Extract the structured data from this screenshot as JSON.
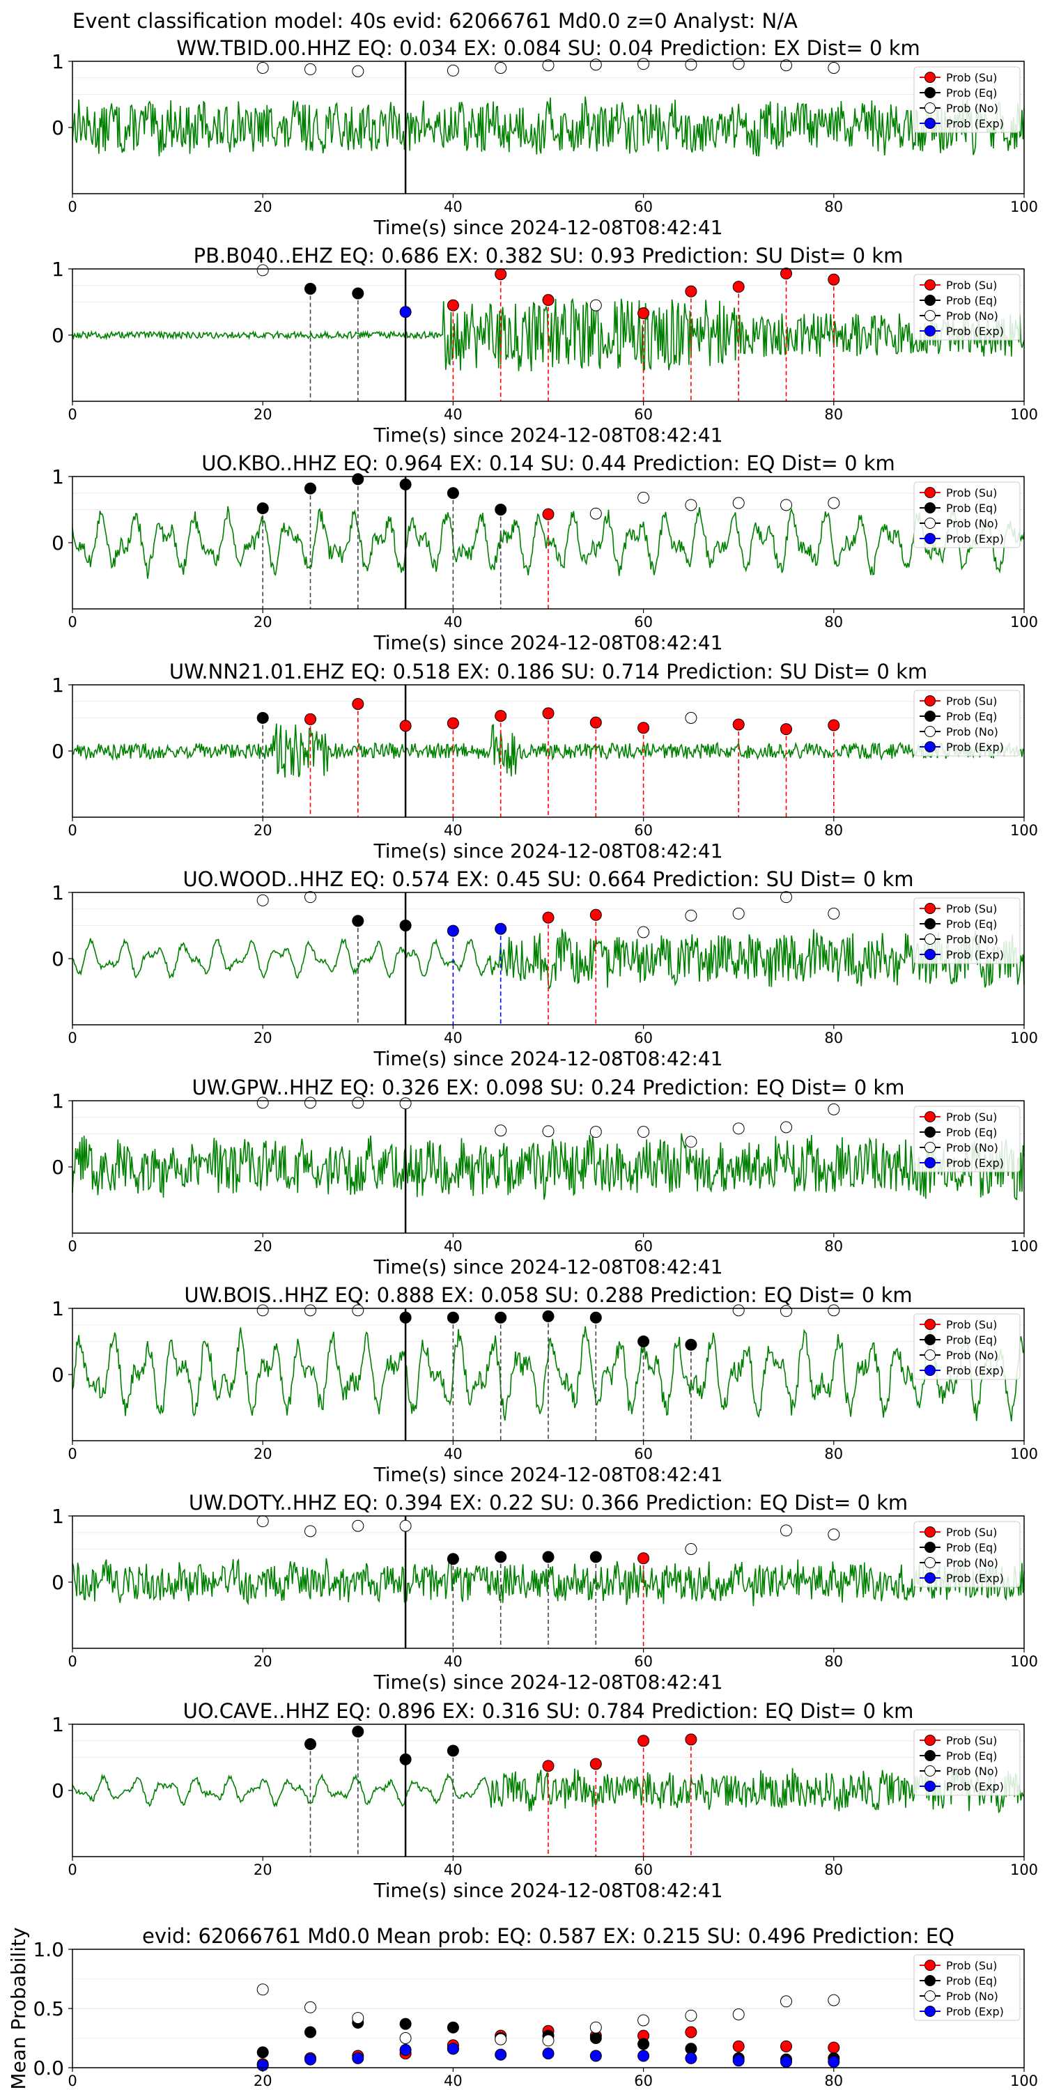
{
  "figure": {
    "title": "Event classification model: 40s evid: 62066761 Md0.0 z=0 Analyst: N/A"
  },
  "colors": {
    "waveform": "#008000",
    "su": "#ff0000",
    "eq": "#000000",
    "no": "#ffffff",
    "exp": "#0000ff",
    "su_line": "#ff0000",
    "eq_line": "#444444",
    "exp_line": "#0000ff",
    "origin_line": "#000000"
  },
  "legend_labels": [
    "Prob (Su)",
    "Prob (Eq)",
    "Prob (No)",
    "Prob (Exp)"
  ],
  "chart_data": [
    {
      "type": "scatter",
      "title": "WW.TBID.00.HHZ   EQ: 0.034  EX: 0.084  SU: 0.04   Prediction: EX    Dist= 0 km",
      "xlabel": "Time(s) since 2024-12-08T08:42:41",
      "xlim": [
        0,
        100
      ],
      "ylim": [
        -1,
        1
      ],
      "xticks": [
        "0",
        "20",
        "40",
        "60",
        "80",
        "100"
      ],
      "yticks": [
        "0",
        "1"
      ],
      "origin_time": 35,
      "waveform": {
        "style": "noise",
        "amp": 0.45
      },
      "points": [
        {
          "x": 20,
          "y": 0.9,
          "class": "No"
        },
        {
          "x": 25,
          "y": 0.88,
          "class": "No"
        },
        {
          "x": 30,
          "y": 0.85,
          "class": "No"
        },
        {
          "x": 40,
          "y": 0.86,
          "class": "No"
        },
        {
          "x": 45,
          "y": 0.9,
          "class": "No"
        },
        {
          "x": 50,
          "y": 0.94,
          "class": "No"
        },
        {
          "x": 55,
          "y": 0.95,
          "class": "No"
        },
        {
          "x": 60,
          "y": 0.96,
          "class": "No"
        },
        {
          "x": 65,
          "y": 0.95,
          "class": "No"
        },
        {
          "x": 70,
          "y": 0.96,
          "class": "No"
        },
        {
          "x": 75,
          "y": 0.94,
          "class": "No"
        },
        {
          "x": 80,
          "y": 0.9,
          "class": "No"
        }
      ],
      "legend": "top-right"
    },
    {
      "type": "scatter",
      "title": "PB.B040..EHZ   EQ: 0.686  EX: 0.382  SU: 0.93   Prediction: SU    Dist= 0 km",
      "xlabel": "Time(s) since 2024-12-08T08:42:41",
      "xlim": [
        0,
        100
      ],
      "ylim": [
        -1,
        1
      ],
      "xticks": [
        "0",
        "20",
        "40",
        "60",
        "80",
        "100"
      ],
      "yticks": [
        "0",
        "1"
      ],
      "origin_time": 35,
      "waveform": {
        "style": "burst",
        "amp": 0.55
      },
      "points": [
        {
          "x": 20,
          "y": 0.98,
          "class": "No"
        },
        {
          "x": 25,
          "y": 0.7,
          "class": "Eq"
        },
        {
          "x": 30,
          "y": 0.63,
          "class": "Eq"
        },
        {
          "x": 35,
          "y": 0.35,
          "class": "Exp"
        },
        {
          "x": 40,
          "y": 0.45,
          "class": "Su"
        },
        {
          "x": 45,
          "y": 0.92,
          "class": "Su"
        },
        {
          "x": 50,
          "y": 0.53,
          "class": "Su"
        },
        {
          "x": 55,
          "y": 0.45,
          "class": "No"
        },
        {
          "x": 60,
          "y": 0.33,
          "class": "Su"
        },
        {
          "x": 65,
          "y": 0.66,
          "class": "Su"
        },
        {
          "x": 70,
          "y": 0.73,
          "class": "Su"
        },
        {
          "x": 75,
          "y": 0.93,
          "class": "Su"
        },
        {
          "x": 80,
          "y": 0.84,
          "class": "Su"
        }
      ],
      "legend": "top-right"
    },
    {
      "type": "scatter",
      "title": "UO.KBO..HHZ   EQ: 0.964  EX: 0.14  SU: 0.44   Prediction: EQ    Dist= 0 km",
      "xlabel": "Time(s) since 2024-12-08T08:42:41",
      "xlim": [
        0,
        100
      ],
      "ylim": [
        -1,
        1
      ],
      "xticks": [
        "0",
        "20",
        "40",
        "60",
        "80",
        "100"
      ],
      "yticks": [
        "0",
        "1"
      ],
      "origin_time": 35,
      "waveform": {
        "style": "wavy",
        "amp": 0.45
      },
      "points": [
        {
          "x": 20,
          "y": 0.52,
          "class": "Eq"
        },
        {
          "x": 25,
          "y": 0.82,
          "class": "Eq"
        },
        {
          "x": 30,
          "y": 0.96,
          "class": "Eq"
        },
        {
          "x": 35,
          "y": 0.88,
          "class": "Eq"
        },
        {
          "x": 40,
          "y": 0.75,
          "class": "Eq"
        },
        {
          "x": 45,
          "y": 0.5,
          "class": "Eq"
        },
        {
          "x": 50,
          "y": 0.43,
          "class": "Su"
        },
        {
          "x": 55,
          "y": 0.44,
          "class": "No"
        },
        {
          "x": 60,
          "y": 0.68,
          "class": "No"
        },
        {
          "x": 65,
          "y": 0.57,
          "class": "No"
        },
        {
          "x": 70,
          "y": 0.6,
          "class": "No"
        },
        {
          "x": 75,
          "y": 0.57,
          "class": "No"
        },
        {
          "x": 80,
          "y": 0.6,
          "class": "No"
        }
      ],
      "legend": "top-right"
    },
    {
      "type": "scatter",
      "title": "UW.NN21.01.EHZ   EQ: 0.518  EX: 0.186  SU: 0.714   Prediction: SU    Dist= 0 km",
      "xlabel": "Time(s) since 2024-12-08T08:42:41",
      "xlim": [
        0,
        100
      ],
      "ylim": [
        -1,
        1
      ],
      "xticks": [
        "0",
        "20",
        "40",
        "60",
        "80",
        "100"
      ],
      "yticks": [
        "0",
        "1"
      ],
      "origin_time": 35,
      "waveform": {
        "style": "quiet",
        "amp": 0.12
      },
      "points": [
        {
          "x": 20,
          "y": 0.5,
          "class": "Eq"
        },
        {
          "x": 25,
          "y": 0.48,
          "class": "Su"
        },
        {
          "x": 30,
          "y": 0.71,
          "class": "Su"
        },
        {
          "x": 35,
          "y": 0.38,
          "class": "Su"
        },
        {
          "x": 40,
          "y": 0.42,
          "class": "Su"
        },
        {
          "x": 45,
          "y": 0.53,
          "class": "Su"
        },
        {
          "x": 50,
          "y": 0.57,
          "class": "Su"
        },
        {
          "x": 55,
          "y": 0.43,
          "class": "Su"
        },
        {
          "x": 60,
          "y": 0.35,
          "class": "Su"
        },
        {
          "x": 65,
          "y": 0.5,
          "class": "No"
        },
        {
          "x": 70,
          "y": 0.4,
          "class": "Su"
        },
        {
          "x": 75,
          "y": 0.33,
          "class": "Su"
        },
        {
          "x": 80,
          "y": 0.39,
          "class": "Su"
        }
      ],
      "legend": "top-right"
    },
    {
      "type": "scatter",
      "title": "UO.WOOD..HHZ   EQ: 0.574  EX: 0.45  SU: 0.664   Prediction: SU    Dist= 0 km",
      "xlabel": "Time(s) since 2024-12-08T08:42:41",
      "xlim": [
        0,
        100
      ],
      "ylim": [
        -1,
        1
      ],
      "xticks": [
        "0",
        "20",
        "40",
        "60",
        "80",
        "100"
      ],
      "yticks": [
        "0",
        "1"
      ],
      "origin_time": 35,
      "waveform": {
        "style": "wavy-burst",
        "amp": 0.4
      },
      "points": [
        {
          "x": 20,
          "y": 0.88,
          "class": "No"
        },
        {
          "x": 25,
          "y": 0.93,
          "class": "No"
        },
        {
          "x": 30,
          "y": 0.57,
          "class": "Eq"
        },
        {
          "x": 35,
          "y": 0.5,
          "class": "Eq"
        },
        {
          "x": 40,
          "y": 0.42,
          "class": "Exp"
        },
        {
          "x": 45,
          "y": 0.45,
          "class": "Exp"
        },
        {
          "x": 50,
          "y": 0.62,
          "class": "Su"
        },
        {
          "x": 55,
          "y": 0.66,
          "class": "Su"
        },
        {
          "x": 60,
          "y": 0.4,
          "class": "No"
        },
        {
          "x": 65,
          "y": 0.65,
          "class": "No"
        },
        {
          "x": 70,
          "y": 0.68,
          "class": "No"
        },
        {
          "x": 75,
          "y": 0.93,
          "class": "No"
        },
        {
          "x": 80,
          "y": 0.68,
          "class": "No"
        }
      ],
      "legend": "top-right"
    },
    {
      "type": "scatter",
      "title": "UW.GPW..HHZ   EQ: 0.326  EX: 0.098  SU: 0.24   Prediction: EQ    Dist= 0 km",
      "xlabel": "Time(s) since 2024-12-08T08:42:41",
      "xlim": [
        0,
        100
      ],
      "ylim": [
        -1,
        1
      ],
      "xticks": [
        "0",
        "20",
        "40",
        "60",
        "80",
        "100"
      ],
      "yticks": [
        "0",
        "1"
      ],
      "origin_time": 35,
      "waveform": {
        "style": "noise",
        "amp": 0.5
      },
      "points": [
        {
          "x": 20,
          "y": 0.97,
          "class": "No"
        },
        {
          "x": 25,
          "y": 0.97,
          "class": "No"
        },
        {
          "x": 30,
          "y": 0.97,
          "class": "No"
        },
        {
          "x": 35,
          "y": 0.96,
          "class": "No"
        },
        {
          "x": 45,
          "y": 0.55,
          "class": "No"
        },
        {
          "x": 50,
          "y": 0.54,
          "class": "No"
        },
        {
          "x": 55,
          "y": 0.53,
          "class": "No"
        },
        {
          "x": 60,
          "y": 0.53,
          "class": "No"
        },
        {
          "x": 65,
          "y": 0.38,
          "class": "No"
        },
        {
          "x": 70,
          "y": 0.58,
          "class": "No"
        },
        {
          "x": 75,
          "y": 0.6,
          "class": "No"
        },
        {
          "x": 80,
          "y": 0.87,
          "class": "No"
        }
      ],
      "legend": "top-right"
    },
    {
      "type": "scatter",
      "title": "UW.BOIS..HHZ   EQ: 0.888  EX: 0.058  SU: 0.288   Prediction: EQ    Dist= 0 km",
      "xlabel": "Time(s) since 2024-12-08T08:42:41",
      "xlim": [
        0,
        100
      ],
      "ylim": [
        -1,
        1
      ],
      "xticks": [
        "0",
        "20",
        "40",
        "60",
        "80",
        "100"
      ],
      "yticks": [
        "0",
        "1"
      ],
      "origin_time": 35,
      "waveform": {
        "style": "wavy",
        "amp": 0.6
      },
      "points": [
        {
          "x": 20,
          "y": 0.97,
          "class": "No"
        },
        {
          "x": 25,
          "y": 0.97,
          "class": "No"
        },
        {
          "x": 30,
          "y": 0.97,
          "class": "No"
        },
        {
          "x": 35,
          "y": 0.86,
          "class": "Eq"
        },
        {
          "x": 40,
          "y": 0.86,
          "class": "Eq"
        },
        {
          "x": 45,
          "y": 0.86,
          "class": "Eq"
        },
        {
          "x": 50,
          "y": 0.88,
          "class": "Eq"
        },
        {
          "x": 55,
          "y": 0.86,
          "class": "Eq"
        },
        {
          "x": 60,
          "y": 0.5,
          "class": "Eq"
        },
        {
          "x": 65,
          "y": 0.45,
          "class": "Eq"
        },
        {
          "x": 70,
          "y": 0.97,
          "class": "No"
        },
        {
          "x": 75,
          "y": 0.96,
          "class": "No"
        },
        {
          "x": 80,
          "y": 0.97,
          "class": "No"
        }
      ],
      "legend": "top-right"
    },
    {
      "type": "scatter",
      "title": "UW.DOTY..HHZ   EQ: 0.394  EX: 0.22  SU: 0.366   Prediction: EQ    Dist= 0 km",
      "xlabel": "Time(s) since 2024-12-08T08:42:41",
      "xlim": [
        0,
        100
      ],
      "ylim": [
        -1,
        1
      ],
      "xticks": [
        "0",
        "20",
        "40",
        "60",
        "80",
        "100"
      ],
      "yticks": [
        "0",
        "1"
      ],
      "origin_time": 35,
      "waveform": {
        "style": "noise",
        "amp": 0.35
      },
      "points": [
        {
          "x": 20,
          "y": 0.92,
          "class": "No"
        },
        {
          "x": 25,
          "y": 0.77,
          "class": "No"
        },
        {
          "x": 30,
          "y": 0.85,
          "class": "No"
        },
        {
          "x": 35,
          "y": 0.85,
          "class": "No"
        },
        {
          "x": 40,
          "y": 0.35,
          "class": "Eq"
        },
        {
          "x": 45,
          "y": 0.38,
          "class": "Eq"
        },
        {
          "x": 50,
          "y": 0.38,
          "class": "Eq"
        },
        {
          "x": 55,
          "y": 0.38,
          "class": "Eq"
        },
        {
          "x": 60,
          "y": 0.36,
          "class": "Su"
        },
        {
          "x": 65,
          "y": 0.5,
          "class": "No"
        },
        {
          "x": 75,
          "y": 0.78,
          "class": "No"
        },
        {
          "x": 80,
          "y": 0.72,
          "class": "No"
        }
      ],
      "legend": "top-right"
    },
    {
      "type": "scatter",
      "title": "UO.CAVE..HHZ   EQ: 0.896  EX: 0.316  SU: 0.784   Prediction: EQ    Dist= 0 km",
      "xlabel": "Time(s) since 2024-12-08T08:42:41",
      "xlim": [
        0,
        100
      ],
      "ylim": [
        -1,
        1
      ],
      "xticks": [
        "0",
        "20",
        "40",
        "60",
        "80",
        "100"
      ],
      "yticks": [
        "0",
        "1"
      ],
      "origin_time": 35,
      "waveform": {
        "style": "wavy-burst",
        "amp": 0.3
      },
      "points": [
        {
          "x": 25,
          "y": 0.7,
          "class": "Eq"
        },
        {
          "x": 30,
          "y": 0.89,
          "class": "Eq"
        },
        {
          "x": 35,
          "y": 0.47,
          "class": "Eq"
        },
        {
          "x": 40,
          "y": 0.6,
          "class": "Eq"
        },
        {
          "x": 50,
          "y": 0.37,
          "class": "Su"
        },
        {
          "x": 55,
          "y": 0.4,
          "class": "Su"
        },
        {
          "x": 60,
          "y": 0.75,
          "class": "Su"
        },
        {
          "x": 65,
          "y": 0.77,
          "class": "Su"
        }
      ],
      "legend": "top-right"
    },
    {
      "type": "scatter",
      "title": "evid: 62066761  Md0.0   Mean prob:   EQ: 0.587  EX: 0.215  SU: 0.496   Prediction: EQ",
      "ylabel": "Mean Probability",
      "xlim": [
        0,
        100
      ],
      "ylim": [
        0,
        1
      ],
      "xticks": [
        "0",
        "20",
        "40",
        "60",
        "80",
        "100"
      ],
      "yticks": [
        "0.0",
        "0.5",
        "1.0"
      ],
      "series": [
        {
          "name": "Prob (Su)",
          "class": "Su",
          "x": [
            20,
            25,
            30,
            35,
            40,
            45,
            50,
            55,
            60,
            65,
            70,
            75,
            80
          ],
          "values": [
            0.03,
            0.08,
            0.1,
            0.12,
            0.19,
            0.27,
            0.31,
            0.27,
            0.27,
            0.3,
            0.18,
            0.18,
            0.17
          ]
        },
        {
          "name": "Prob (Eq)",
          "class": "Eq",
          "x": [
            20,
            25,
            30,
            35,
            40,
            45,
            50,
            55,
            60,
            65,
            70,
            75,
            80
          ],
          "values": [
            0.13,
            0.3,
            0.38,
            0.37,
            0.34,
            0.25,
            0.27,
            0.25,
            0.2,
            0.16,
            0.08,
            0.07,
            0.08
          ]
        },
        {
          "name": "Prob (No)",
          "class": "No",
          "x": [
            20,
            25,
            30,
            35,
            40,
            45,
            50,
            55,
            60,
            65,
            70,
            75,
            80
          ],
          "values": [
            0.66,
            0.51,
            0.42,
            0.25,
            0.16,
            0.24,
            0.23,
            0.34,
            0.4,
            0.44,
            0.45,
            0.56,
            0.57
          ]
        },
        {
          "name": "Prob (Exp)",
          "class": "Exp",
          "x": [
            20,
            25,
            30,
            35,
            40,
            45,
            50,
            55,
            60,
            65,
            70,
            75,
            80
          ],
          "values": [
            0.02,
            0.07,
            0.08,
            0.15,
            0.16,
            0.11,
            0.12,
            0.1,
            0.1,
            0.08,
            0.06,
            0.05,
            0.05
          ]
        }
      ],
      "legend": "top-right",
      "grid": true
    }
  ]
}
